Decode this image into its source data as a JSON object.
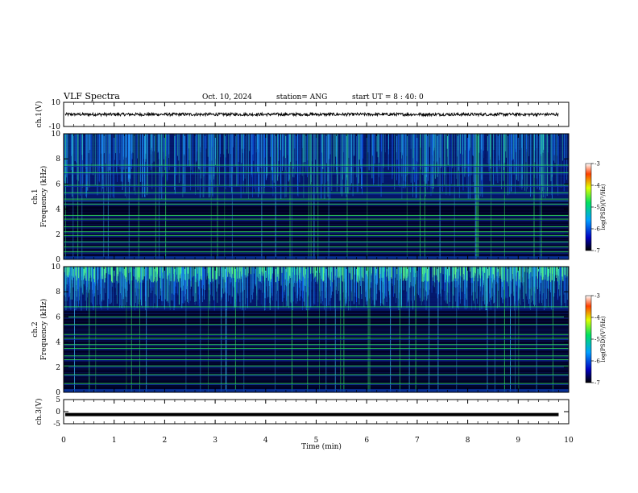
{
  "header": {
    "title": "VLF Spectra",
    "date": "Oct. 10, 2024",
    "station": "station= ANG",
    "start": "start  UT =  8 : 40: 0"
  },
  "chart_data": [
    {
      "type": "line",
      "name": "ch1-waveform",
      "ylabel": "ch.1(V)",
      "ylim": [
        -10,
        10
      ],
      "y_ticks": [
        "10",
        "-10"
      ],
      "x": [
        0,
        9.8
      ],
      "y_level_approx": 0,
      "noise_amplitude_approx": 1.2
    },
    {
      "type": "heatmap",
      "name": "ch1-spectrogram",
      "ylabel_channel": "ch.1",
      "ylabel": "Frequency (kHz)",
      "ylim": [
        0,
        10
      ],
      "y_ticks": [
        "0",
        "2",
        "4",
        "6",
        "8",
        "10"
      ],
      "colorbar": {
        "label": "log(PSD)(V²/Hz)",
        "range": [
          -7,
          -3
        ],
        "ticks": [
          "-3",
          "-4",
          "-5",
          "-6",
          "-7"
        ]
      },
      "horizontal_line_khz_approx": [
        0.6,
        1.0,
        1.4,
        1.9,
        2.2,
        2.6,
        3.2,
        3.5,
        4.4,
        4.7,
        4.8,
        5.3,
        5.9,
        6.9,
        7.5
      ],
      "wideband_region_khz": [
        4.8,
        10
      ]
    },
    {
      "type": "heatmap",
      "name": "ch2-spectrogram",
      "ylabel_channel": "ch.2",
      "ylabel": "Frequency (kHz)",
      "ylim": [
        0,
        10
      ],
      "y_ticks": [
        "0",
        "2",
        "4",
        "6",
        "8",
        "10"
      ],
      "colorbar": {
        "label": "log(PSD)(V²/Hz)",
        "range": [
          -7,
          -3
        ],
        "ticks": [
          "-3",
          "-4",
          "-5",
          "-6",
          "-7"
        ]
      },
      "horizontal_line_khz_approx": [
        0.7,
        1.4,
        2.1,
        2.6,
        2.9,
        3.5,
        3.8,
        4.3,
        4.6,
        5.4,
        6.0,
        6.8
      ],
      "wideband_region_khz": [
        6.5,
        10
      ]
    },
    {
      "type": "line",
      "name": "ch3-waveform",
      "ylabel": "ch.3(V)",
      "ylim": [
        -5,
        5
      ],
      "y_ticks": [
        "5",
        "0",
        "-5"
      ],
      "x": [
        0,
        9.8
      ],
      "y_level_approx": -1.2
    }
  ],
  "xaxis": {
    "label": "Time (min)",
    "range": [
      0,
      10
    ],
    "ticks": [
      "0",
      "1",
      "2",
      "3",
      "4",
      "5",
      "6",
      "7",
      "8",
      "9",
      "10"
    ]
  },
  "colors": {
    "background": "#000020",
    "band": "#1030b0",
    "line": "#30e060",
    "colorbar_stops": [
      "#000000",
      "#0000c0",
      "#00a0ff",
      "#00e060",
      "#e0ff00",
      "#ff4000",
      "#ffffff"
    ]
  }
}
